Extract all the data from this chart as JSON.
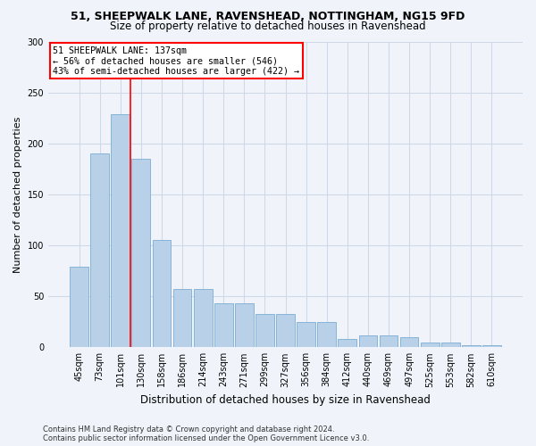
{
  "title1": "51, SHEEPWALK LANE, RAVENSHEAD, NOTTINGHAM, NG15 9FD",
  "title2": "Size of property relative to detached houses in Ravenshead",
  "xlabel": "Distribution of detached houses by size in Ravenshead",
  "ylabel": "Number of detached properties",
  "footnote1": "Contains HM Land Registry data © Crown copyright and database right 2024.",
  "footnote2": "Contains public sector information licensed under the Open Government Licence v3.0.",
  "categories": [
    "45sqm",
    "73sqm",
    "101sqm",
    "130sqm",
    "158sqm",
    "186sqm",
    "214sqm",
    "243sqm",
    "271sqm",
    "299sqm",
    "327sqm",
    "356sqm",
    "384sqm",
    "412sqm",
    "440sqm",
    "469sqm",
    "497sqm",
    "525sqm",
    "553sqm",
    "582sqm",
    "610sqm"
  ],
  "values": [
    79,
    190,
    229,
    185,
    105,
    57,
    57,
    43,
    43,
    33,
    33,
    25,
    25,
    8,
    12,
    12,
    10,
    5,
    5,
    2,
    2
  ],
  "bar_color": "#b8d0e8",
  "bar_edge_color": "#7aadd4",
  "grid_color": "#d0d8e8",
  "vline_color": "red",
  "vline_pos": 2.5,
  "annotation_text": "51 SHEEPWALK LANE: 137sqm\n← 56% of detached houses are smaller (546)\n43% of semi-detached houses are larger (422) →",
  "annotation_box_color": "white",
  "annotation_box_edge": "red",
  "ylim": [
    0,
    300
  ],
  "yticks": [
    0,
    50,
    100,
    150,
    200,
    250,
    300
  ],
  "background_color": "#f0f4fa",
  "title1_fontsize": 9,
  "title2_fontsize": 8.5,
  "ylabel_fontsize": 8,
  "xlabel_fontsize": 8.5,
  "tick_fontsize": 7,
  "footnote_fontsize": 6
}
